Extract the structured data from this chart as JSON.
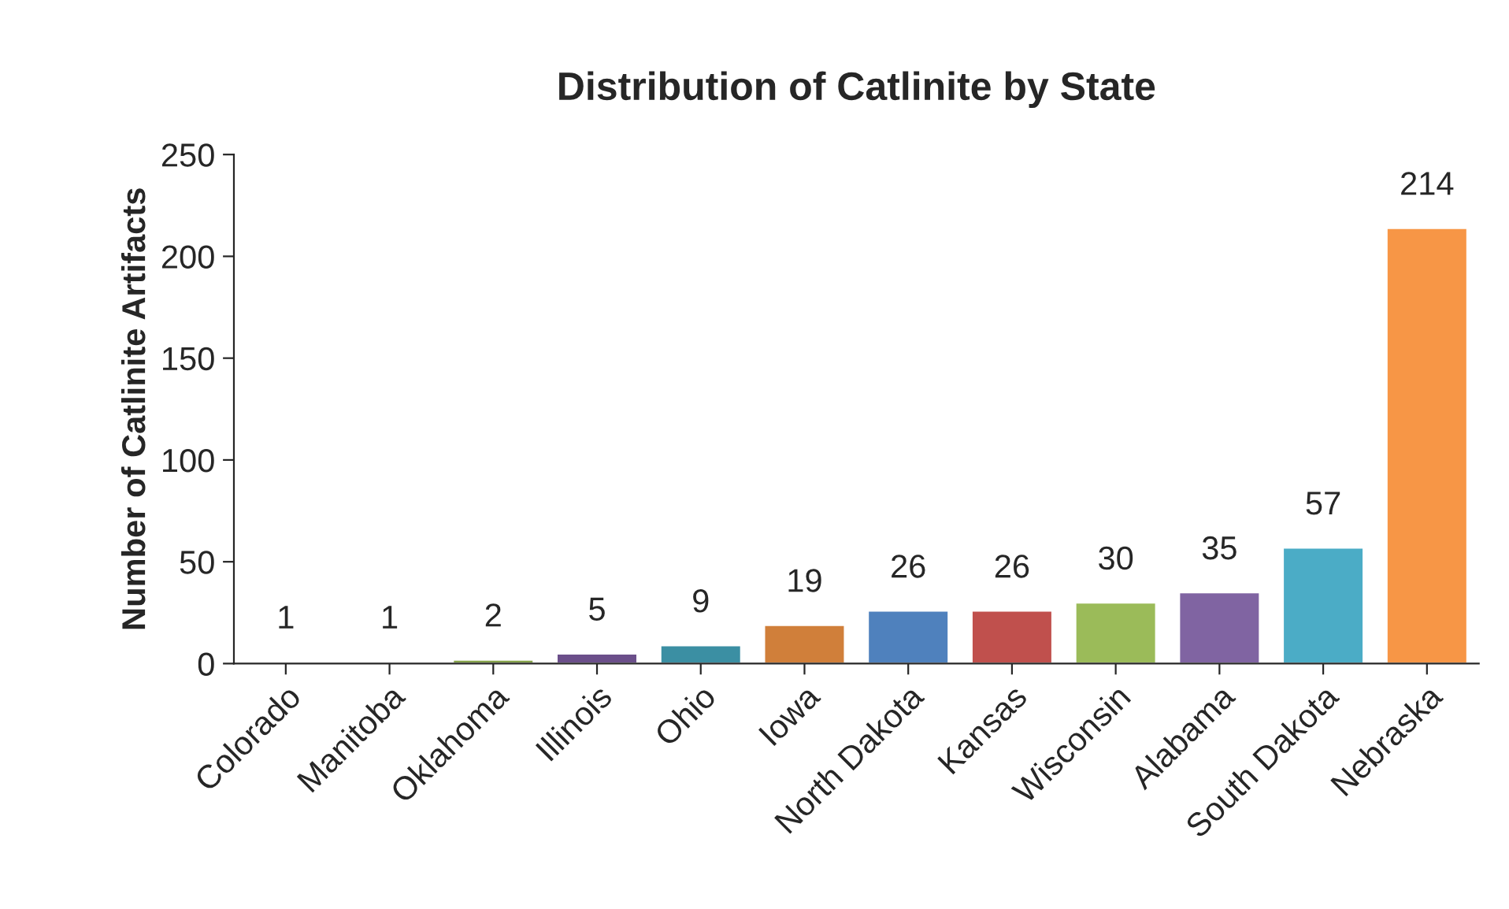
{
  "chart_data": {
    "type": "bar",
    "title": "Distribution of Catlinite by State",
    "ylabel": "Number of Catlinite Artifacts",
    "categories": [
      "Colorado",
      "Manitoba",
      "Oklahoma",
      "Illinois",
      "Ohio",
      "Iowa",
      "North Dakota",
      "Kansas",
      "Wisconsin",
      "Alabama",
      "South Dakota",
      "Nebraska"
    ],
    "values": [
      1,
      1,
      2,
      5,
      9,
      19,
      26,
      26,
      30,
      35,
      57,
      214
    ],
    "colors": [
      "#4a6fa5",
      "#a84a48",
      "#86a34a",
      "#6b4f8a",
      "#3b8fa3",
      "#d07f3a",
      "#4f81bd",
      "#c0504d",
      "#9bbb59",
      "#8064a2",
      "#4bacc6",
      "#f79646"
    ],
    "ylim": [
      0,
      250
    ],
    "yticks": [
      0,
      50,
      100,
      150,
      200,
      250
    ],
    "data_labels": true,
    "grid": false,
    "legend": false
  }
}
